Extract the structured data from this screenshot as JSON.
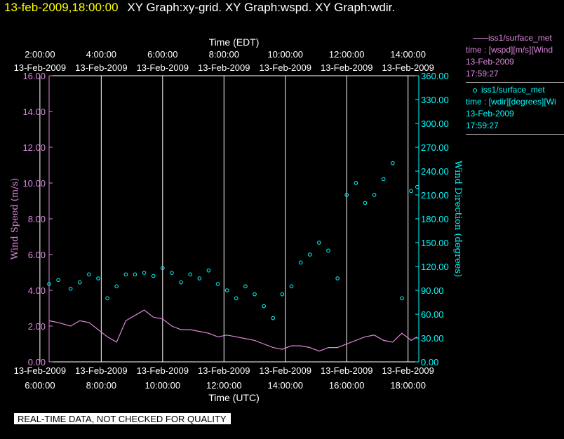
{
  "header": {
    "timestamp": "13-feb-2009,18:00:00",
    "graphs": "XY Graph:xy-grid.  XY Graph:wspd.  XY Graph:wdir."
  },
  "legend": {
    "series1": {
      "name": "iss1/surface_met",
      "desc": "time : [wspd][m/s][Wind",
      "date": "13-Feb-2009",
      "time": "17:59:27",
      "color": "#dd88dd"
    },
    "series2": {
      "name": "iss1/surface_met",
      "desc": "time : [wdir][degrees][Wi",
      "date": "13-Feb-2009",
      "time": "17:59:27",
      "color": "#00ffff"
    }
  },
  "notice": "REAL-TIME DATA, NOT CHECKED FOR QUALITY",
  "chart_data": {
    "type": "scatter",
    "top_axis": {
      "label": "Time (EDT)",
      "ticks": [
        {
          "time": "2:00:00",
          "date": "13-Feb-2009"
        },
        {
          "time": "4:00:00",
          "date": "13-Feb-2009"
        },
        {
          "time": "6:00:00",
          "date": "13-Feb-2009"
        },
        {
          "time": "8:00:00",
          "date": "13-Feb-2009"
        },
        {
          "time": "10:00:00",
          "date": "13-Feb-2009"
        },
        {
          "time": "12:00:00",
          "date": "13-Feb-2009"
        },
        {
          "time": "14:00:00",
          "date": "13-Feb-2009"
        }
      ]
    },
    "bottom_axis": {
      "label": "Time (UTC)",
      "range_hours": [
        6.3,
        18.35
      ],
      "tick_hours": [
        6,
        8,
        10,
        12,
        14,
        16,
        18
      ],
      "ticks": [
        {
          "date": "13-Feb-2009",
          "time": "6:00:00"
        },
        {
          "date": "13-Feb-2009",
          "time": "8:00:00"
        },
        {
          "date": "13-Feb-2009",
          "time": "10:00:00"
        },
        {
          "date": "13-Feb-2009",
          "time": "12:00:00"
        },
        {
          "date": "13-Feb-2009",
          "time": "14:00:00"
        },
        {
          "date": "13-Feb-2009",
          "time": "16:00:00"
        },
        {
          "date": "13-Feb-2009",
          "time": "18:00:00"
        }
      ]
    },
    "left_axis": {
      "label": "Wind Speed (m/s)",
      "range": [
        0,
        16
      ],
      "ticks": [
        "0.00",
        "2.00",
        "4.00",
        "6.00",
        "8.00",
        "10.00",
        "12.00",
        "14.00",
        "16.00"
      ],
      "color": "#dd88dd"
    },
    "right_axis": {
      "label": "Wind Direction (degrees)",
      "range": [
        0,
        360
      ],
      "ticks": [
        "0.00",
        "30.00",
        "60.00",
        "90.00",
        "120.00",
        "150.00",
        "180.00",
        "210.00",
        "240.00",
        "270.00",
        "300.00",
        "330.00",
        "360.00"
      ],
      "color": "#00ffff"
    },
    "series": [
      {
        "name": "wspd",
        "style": "line",
        "color": "#dd88dd",
        "x_hours": [
          6.3,
          6.6,
          7.0,
          7.3,
          7.6,
          7.9,
          8.2,
          8.5,
          8.8,
          9.1,
          9.4,
          9.7,
          10.0,
          10.3,
          10.6,
          10.9,
          11.2,
          11.5,
          11.8,
          12.1,
          12.4,
          12.7,
          13.0,
          13.3,
          13.6,
          13.9,
          14.2,
          14.5,
          14.8,
          15.1,
          15.4,
          15.7,
          16.0,
          16.3,
          16.6,
          16.9,
          17.2,
          17.5,
          17.8,
          18.1,
          18.3
        ],
        "values": [
          2.3,
          2.2,
          2.0,
          2.3,
          2.2,
          1.8,
          1.4,
          1.1,
          2.3,
          2.6,
          2.9,
          2.5,
          2.4,
          2.0,
          1.8,
          1.8,
          1.7,
          1.6,
          1.4,
          1.5,
          1.4,
          1.3,
          1.2,
          1.0,
          0.8,
          0.7,
          0.9,
          0.9,
          0.8,
          0.6,
          0.8,
          0.8,
          1.0,
          1.2,
          1.4,
          1.5,
          1.2,
          1.1,
          1.6,
          1.2,
          1.4
        ]
      },
      {
        "name": "wdir",
        "style": "markers",
        "color": "#00ffff",
        "x_hours": [
          6.3,
          6.6,
          7.0,
          7.3,
          7.6,
          7.9,
          8.2,
          8.5,
          8.8,
          9.1,
          9.4,
          9.7,
          10.0,
          10.3,
          10.6,
          10.9,
          11.2,
          11.5,
          11.8,
          12.1,
          12.4,
          12.7,
          13.0,
          13.3,
          13.6,
          13.9,
          14.2,
          14.5,
          14.8,
          15.1,
          15.4,
          15.7,
          16.0,
          16.3,
          16.6,
          16.9,
          17.2,
          17.5,
          17.8,
          18.1,
          18.3
        ],
        "values": [
          98,
          103,
          92,
          100,
          110,
          105,
          80,
          95,
          110,
          110,
          112,
          108,
          118,
          112,
          100,
          110,
          105,
          115,
          98,
          90,
          80,
          95,
          85,
          70,
          55,
          85,
          95,
          125,
          135,
          150,
          140,
          105,
          210,
          225,
          200,
          210,
          230,
          250,
          80,
          215,
          220
        ]
      }
    ]
  }
}
